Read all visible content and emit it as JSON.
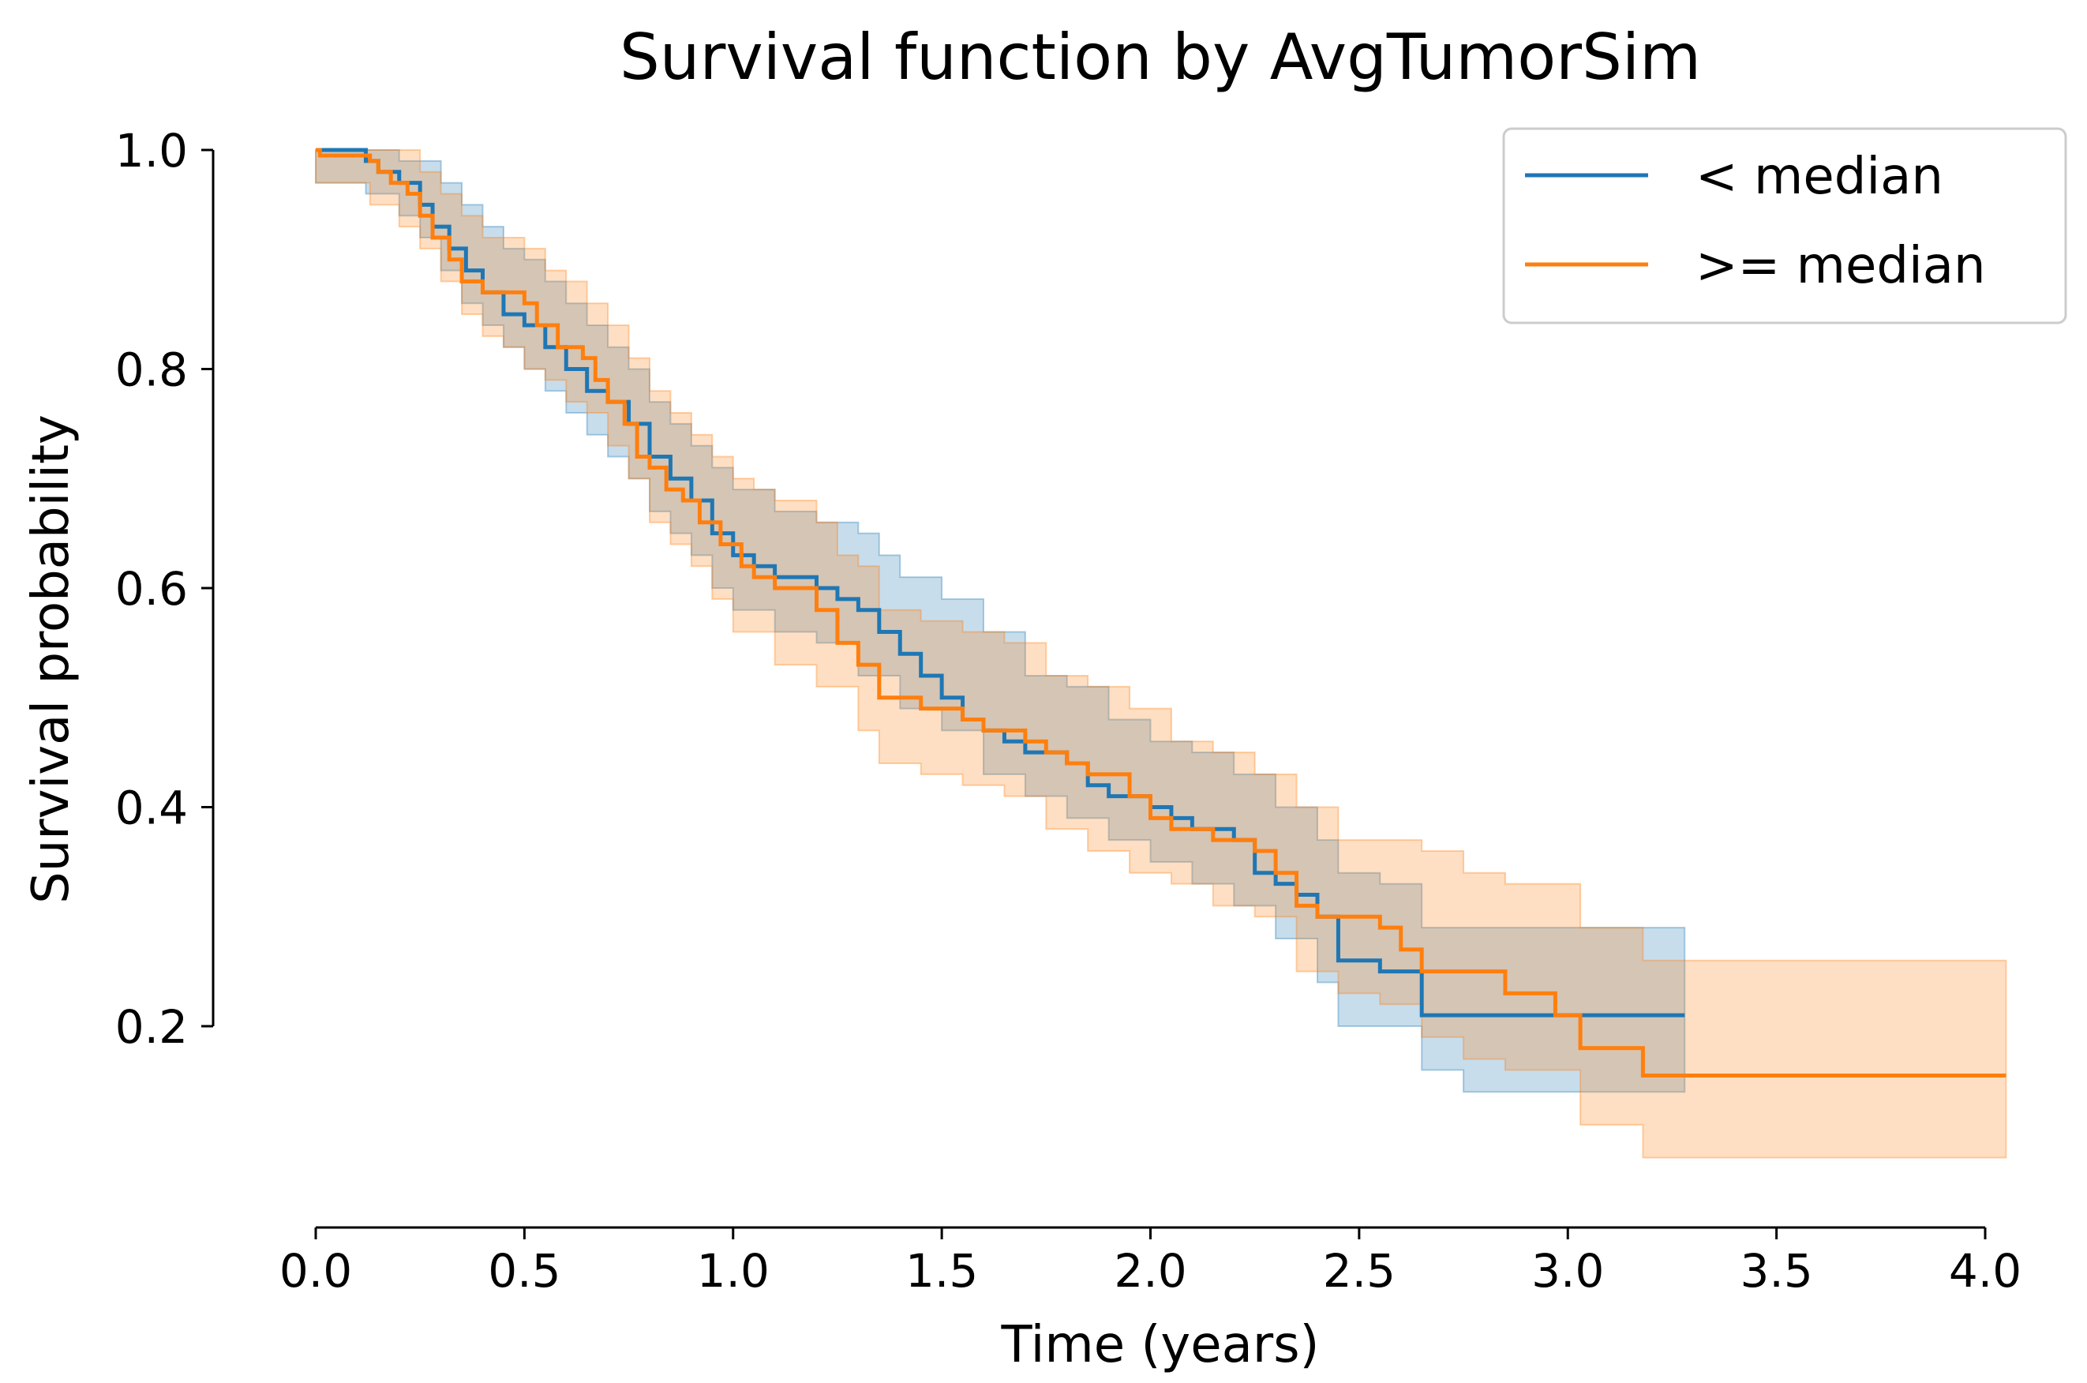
{
  "chart_data": {
    "type": "line",
    "title": "Survival function by AvgTumorSim",
    "xlabel": "Time (years)",
    "ylabel": "Survival probability",
    "xlim": [
      0.0,
      4.0
    ],
    "ylim": [
      0.2,
      1.0
    ],
    "x_ticks": [
      "0.0",
      "0.5",
      "1.0",
      "1.5",
      "2.0",
      "2.5",
      "3.0",
      "3.5",
      "4.0"
    ],
    "y_ticks": [
      "0.2",
      "0.4",
      "0.6",
      "0.8",
      "1.0"
    ],
    "grid": false,
    "legend_position": "top-right",
    "series": [
      {
        "name": "< median",
        "color": "#1f77b4",
        "step": true,
        "points": [
          [
            0.0,
            1.0
          ],
          [
            0.07,
            1.0
          ],
          [
            0.12,
            0.99
          ],
          [
            0.15,
            0.98
          ],
          [
            0.2,
            0.97
          ],
          [
            0.25,
            0.95
          ],
          [
            0.28,
            0.93
          ],
          [
            0.32,
            0.91
          ],
          [
            0.36,
            0.89
          ],
          [
            0.4,
            0.87
          ],
          [
            0.45,
            0.85
          ],
          [
            0.5,
            0.84
          ],
          [
            0.55,
            0.82
          ],
          [
            0.6,
            0.8
          ],
          [
            0.65,
            0.78
          ],
          [
            0.7,
            0.77
          ],
          [
            0.75,
            0.75
          ],
          [
            0.8,
            0.72
          ],
          [
            0.85,
            0.7
          ],
          [
            0.9,
            0.68
          ],
          [
            0.95,
            0.65
          ],
          [
            1.0,
            0.63
          ],
          [
            1.05,
            0.62
          ],
          [
            1.1,
            0.61
          ],
          [
            1.2,
            0.6
          ],
          [
            1.25,
            0.59
          ],
          [
            1.3,
            0.58
          ],
          [
            1.35,
            0.56
          ],
          [
            1.4,
            0.54
          ],
          [
            1.45,
            0.52
          ],
          [
            1.5,
            0.5
          ],
          [
            1.55,
            0.48
          ],
          [
            1.6,
            0.47
          ],
          [
            1.65,
            0.46
          ],
          [
            1.7,
            0.45
          ],
          [
            1.8,
            0.44
          ],
          [
            1.85,
            0.42
          ],
          [
            1.9,
            0.41
          ],
          [
            2.0,
            0.4
          ],
          [
            2.05,
            0.39
          ],
          [
            2.1,
            0.38
          ],
          [
            2.2,
            0.37
          ],
          [
            2.25,
            0.34
          ],
          [
            2.3,
            0.33
          ],
          [
            2.35,
            0.32
          ],
          [
            2.4,
            0.3
          ],
          [
            2.45,
            0.26
          ],
          [
            2.55,
            0.25
          ],
          [
            2.65,
            0.21
          ],
          [
            3.28,
            0.21
          ]
        ],
        "ci_lower": [
          [
            0.0,
            0.97
          ],
          [
            0.12,
            0.96
          ],
          [
            0.2,
            0.94
          ],
          [
            0.25,
            0.92
          ],
          [
            0.3,
            0.89
          ],
          [
            0.35,
            0.86
          ],
          [
            0.4,
            0.84
          ],
          [
            0.45,
            0.82
          ],
          [
            0.5,
            0.8
          ],
          [
            0.55,
            0.78
          ],
          [
            0.6,
            0.76
          ],
          [
            0.65,
            0.74
          ],
          [
            0.7,
            0.72
          ],
          [
            0.75,
            0.7
          ],
          [
            0.8,
            0.67
          ],
          [
            0.85,
            0.65
          ],
          [
            0.9,
            0.63
          ],
          [
            0.95,
            0.6
          ],
          [
            1.0,
            0.58
          ],
          [
            1.1,
            0.56
          ],
          [
            1.2,
            0.55
          ],
          [
            1.3,
            0.52
          ],
          [
            1.4,
            0.49
          ],
          [
            1.5,
            0.47
          ],
          [
            1.6,
            0.43
          ],
          [
            1.7,
            0.41
          ],
          [
            1.8,
            0.39
          ],
          [
            1.9,
            0.37
          ],
          [
            2.0,
            0.35
          ],
          [
            2.1,
            0.33
          ],
          [
            2.2,
            0.31
          ],
          [
            2.3,
            0.28
          ],
          [
            2.4,
            0.24
          ],
          [
            2.45,
            0.2
          ],
          [
            2.65,
            0.16
          ],
          [
            2.75,
            0.14
          ],
          [
            3.28,
            0.14
          ]
        ],
        "ci_upper": [
          [
            0.0,
            1.0
          ],
          [
            0.2,
            0.99
          ],
          [
            0.3,
            0.97
          ],
          [
            0.35,
            0.95
          ],
          [
            0.4,
            0.93
          ],
          [
            0.45,
            0.91
          ],
          [
            0.5,
            0.9
          ],
          [
            0.55,
            0.88
          ],
          [
            0.6,
            0.86
          ],
          [
            0.65,
            0.84
          ],
          [
            0.7,
            0.82
          ],
          [
            0.75,
            0.8
          ],
          [
            0.8,
            0.77
          ],
          [
            0.85,
            0.75
          ],
          [
            0.9,
            0.73
          ],
          [
            0.95,
            0.71
          ],
          [
            1.0,
            0.69
          ],
          [
            1.1,
            0.67
          ],
          [
            1.2,
            0.66
          ],
          [
            1.3,
            0.65
          ],
          [
            1.35,
            0.63
          ],
          [
            1.4,
            0.61
          ],
          [
            1.5,
            0.59
          ],
          [
            1.6,
            0.56
          ],
          [
            1.7,
            0.52
          ],
          [
            1.8,
            0.51
          ],
          [
            1.9,
            0.48
          ],
          [
            2.0,
            0.46
          ],
          [
            2.1,
            0.45
          ],
          [
            2.2,
            0.43
          ],
          [
            2.3,
            0.4
          ],
          [
            2.4,
            0.37
          ],
          [
            2.45,
            0.34
          ],
          [
            2.55,
            0.33
          ],
          [
            2.65,
            0.29
          ],
          [
            3.28,
            0.29
          ]
        ]
      },
      {
        "name": ">= median",
        "color": "#ff7f0e",
        "step": true,
        "points": [
          [
            0.0,
            1.0
          ],
          [
            0.01,
            0.995
          ],
          [
            0.13,
            0.99
          ],
          [
            0.15,
            0.98
          ],
          [
            0.18,
            0.97
          ],
          [
            0.22,
            0.96
          ],
          [
            0.25,
            0.94
          ],
          [
            0.28,
            0.92
          ],
          [
            0.32,
            0.9
          ],
          [
            0.35,
            0.88
          ],
          [
            0.4,
            0.87
          ],
          [
            0.5,
            0.86
          ],
          [
            0.53,
            0.84
          ],
          [
            0.55,
            0.84
          ],
          [
            0.58,
            0.82
          ],
          [
            0.6,
            0.82
          ],
          [
            0.64,
            0.81
          ],
          [
            0.67,
            0.79
          ],
          [
            0.7,
            0.77
          ],
          [
            0.74,
            0.75
          ],
          [
            0.77,
            0.72
          ],
          [
            0.8,
            0.71
          ],
          [
            0.84,
            0.69
          ],
          [
            0.88,
            0.68
          ],
          [
            0.92,
            0.66
          ],
          [
            0.97,
            0.64
          ],
          [
            1.02,
            0.62
          ],
          [
            1.05,
            0.61
          ],
          [
            1.1,
            0.6
          ],
          [
            1.2,
            0.58
          ],
          [
            1.25,
            0.55
          ],
          [
            1.3,
            0.53
          ],
          [
            1.35,
            0.5
          ],
          [
            1.45,
            0.49
          ],
          [
            1.55,
            0.48
          ],
          [
            1.6,
            0.47
          ],
          [
            1.65,
            0.47
          ],
          [
            1.7,
            0.46
          ],
          [
            1.75,
            0.45
          ],
          [
            1.8,
            0.44
          ],
          [
            1.85,
            0.43
          ],
          [
            1.95,
            0.41
          ],
          [
            2.0,
            0.39
          ],
          [
            2.05,
            0.38
          ],
          [
            2.15,
            0.37
          ],
          [
            2.25,
            0.36
          ],
          [
            2.3,
            0.34
          ],
          [
            2.35,
            0.31
          ],
          [
            2.4,
            0.3
          ],
          [
            2.55,
            0.29
          ],
          [
            2.6,
            0.27
          ],
          [
            2.65,
            0.25
          ],
          [
            2.75,
            0.25
          ],
          [
            2.85,
            0.23
          ],
          [
            2.97,
            0.21
          ],
          [
            3.03,
            0.18
          ],
          [
            3.18,
            0.155
          ],
          [
            4.05,
            0.155
          ]
        ],
        "ci_lower": [
          [
            0.0,
            0.97
          ],
          [
            0.13,
            0.95
          ],
          [
            0.2,
            0.93
          ],
          [
            0.25,
            0.91
          ],
          [
            0.3,
            0.88
          ],
          [
            0.35,
            0.85
          ],
          [
            0.4,
            0.83
          ],
          [
            0.45,
            0.82
          ],
          [
            0.5,
            0.8
          ],
          [
            0.55,
            0.79
          ],
          [
            0.6,
            0.77
          ],
          [
            0.65,
            0.76
          ],
          [
            0.7,
            0.73
          ],
          [
            0.75,
            0.7
          ],
          [
            0.8,
            0.66
          ],
          [
            0.85,
            0.64
          ],
          [
            0.9,
            0.62
          ],
          [
            0.95,
            0.59
          ],
          [
            1.0,
            0.56
          ],
          [
            1.1,
            0.53
          ],
          [
            1.2,
            0.51
          ],
          [
            1.3,
            0.47
          ],
          [
            1.35,
            0.44
          ],
          [
            1.45,
            0.43
          ],
          [
            1.55,
            0.42
          ],
          [
            1.65,
            0.41
          ],
          [
            1.75,
            0.38
          ],
          [
            1.85,
            0.36
          ],
          [
            1.95,
            0.34
          ],
          [
            2.05,
            0.33
          ],
          [
            2.15,
            0.31
          ],
          [
            2.25,
            0.3
          ],
          [
            2.35,
            0.25
          ],
          [
            2.45,
            0.23
          ],
          [
            2.55,
            0.22
          ],
          [
            2.65,
            0.19
          ],
          [
            2.75,
            0.17
          ],
          [
            2.85,
            0.16
          ],
          [
            3.03,
            0.11
          ],
          [
            3.18,
            0.08
          ],
          [
            4.05,
            0.08
          ]
        ],
        "ci_upper": [
          [
            0.0,
            1.0
          ],
          [
            0.25,
            0.98
          ],
          [
            0.3,
            0.96
          ],
          [
            0.35,
            0.94
          ],
          [
            0.4,
            0.92
          ],
          [
            0.5,
            0.91
          ],
          [
            0.55,
            0.89
          ],
          [
            0.6,
            0.88
          ],
          [
            0.65,
            0.86
          ],
          [
            0.7,
            0.84
          ],
          [
            0.75,
            0.81
          ],
          [
            0.8,
            0.78
          ],
          [
            0.85,
            0.76
          ],
          [
            0.9,
            0.74
          ],
          [
            0.95,
            0.72
          ],
          [
            1.0,
            0.7
          ],
          [
            1.05,
            0.69
          ],
          [
            1.1,
            0.68
          ],
          [
            1.2,
            0.66
          ],
          [
            1.25,
            0.63
          ],
          [
            1.3,
            0.62
          ],
          [
            1.35,
            0.58
          ],
          [
            1.45,
            0.57
          ],
          [
            1.55,
            0.56
          ],
          [
            1.65,
            0.55
          ],
          [
            1.75,
            0.52
          ],
          [
            1.85,
            0.51
          ],
          [
            1.95,
            0.49
          ],
          [
            2.05,
            0.46
          ],
          [
            2.15,
            0.45
          ],
          [
            2.25,
            0.43
          ],
          [
            2.35,
            0.4
          ],
          [
            2.45,
            0.37
          ],
          [
            2.65,
            0.36
          ],
          [
            2.75,
            0.34
          ],
          [
            2.85,
            0.33
          ],
          [
            3.03,
            0.29
          ],
          [
            3.18,
            0.26
          ],
          [
            4.05,
            0.26
          ]
        ]
      }
    ]
  }
}
